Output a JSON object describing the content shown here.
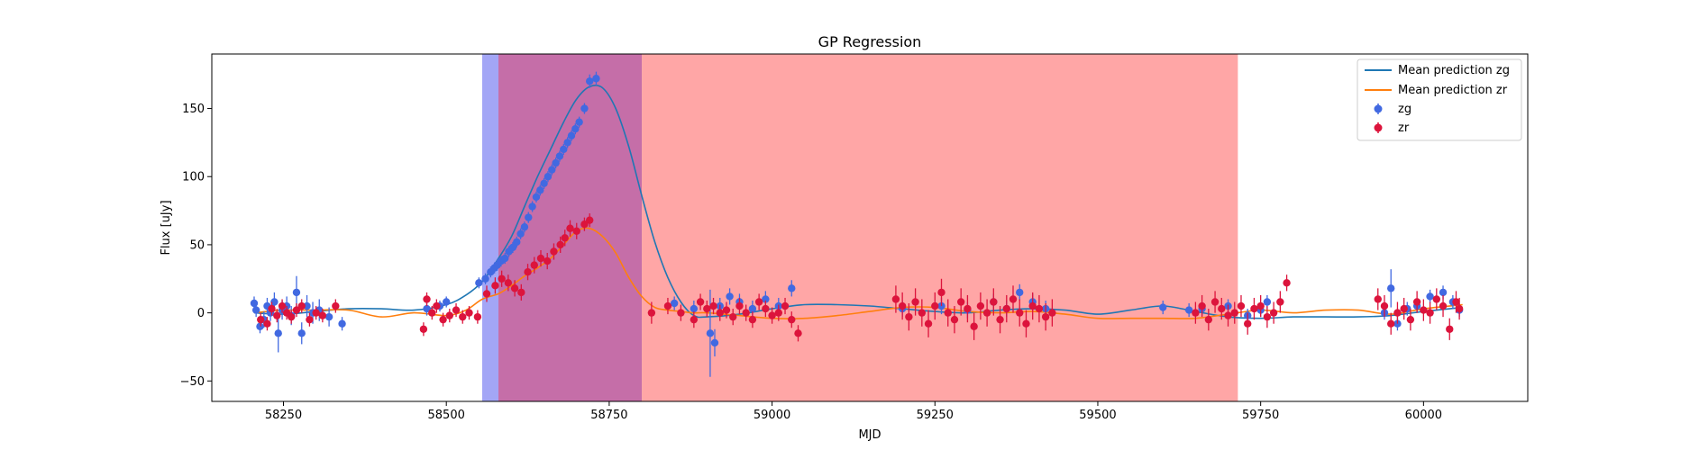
{
  "chart_data": {
    "type": "scatter",
    "title": "GP Regression",
    "xlabel": "MJD",
    "ylabel": "Flux [uJy]",
    "xlim": [
      58140,
      60160
    ],
    "ylim": [
      -65,
      190
    ],
    "x_ticks": [
      58250,
      58500,
      58750,
      59000,
      59250,
      59500,
      59750,
      60000
    ],
    "y_ticks": [
      -50,
      0,
      50,
      100,
      150
    ],
    "grid": false,
    "legend_position": "top-right",
    "shaded_regions": [
      {
        "x0": 58555,
        "x1": 58580,
        "color": "#a3a6f6"
      },
      {
        "x0": 58580,
        "x1": 58800,
        "color": "#c56ea8"
      },
      {
        "x0": 58800,
        "x1": 59715,
        "color": "#ffa6a6"
      }
    ],
    "series": [
      {
        "name": "Mean prediction zg",
        "kind": "line",
        "color": "#1f77b4",
        "x": [
          58205,
          58250,
          58300,
          58350,
          58400,
          58450,
          58500,
          58530,
          58555,
          58580,
          58600,
          58620,
          58640,
          58660,
          58680,
          58700,
          58720,
          58740,
          58760,
          58780,
          58800,
          58820,
          58840,
          58860,
          58880,
          58900,
          58950,
          59000,
          59050,
          59100,
          59150,
          59200,
          59250,
          59300,
          59350,
          59400,
          59450,
          59500,
          59550,
          59600,
          59650,
          59700,
          59750,
          59800,
          59850,
          59900,
          59950,
          60000,
          60060
        ],
        "y": [
          0,
          -1,
          1,
          3,
          3,
          2,
          6,
          13,
          23,
          40,
          56,
          78,
          100,
          120,
          140,
          157,
          166,
          165,
          150,
          122,
          86,
          52,
          26,
          8,
          -2,
          -3,
          -1,
          3,
          6,
          6,
          5,
          3,
          1,
          0,
          2,
          3,
          2,
          -1,
          2,
          5,
          1,
          -3,
          -4,
          -3,
          -3,
          -3,
          -2,
          1,
          4
        ]
      },
      {
        "name": "Mean prediction zr",
        "kind": "line",
        "color": "#ff7f0e",
        "x": [
          58205,
          58250,
          58300,
          58350,
          58400,
          58450,
          58500,
          58530,
          58555,
          58580,
          58600,
          58620,
          58640,
          58660,
          58680,
          58700,
          58720,
          58740,
          58760,
          58780,
          58800,
          58820,
          58840,
          58860,
          58880,
          58900,
          58950,
          59000,
          59050,
          59100,
          59150,
          59200,
          59250,
          59300,
          59350,
          59400,
          59450,
          59500,
          59550,
          59600,
          59650,
          59700,
          59750,
          59800,
          59850,
          59900,
          59950,
          60000,
          60060
        ],
        "y": [
          0,
          2,
          2,
          2,
          -3,
          0,
          -2,
          2,
          10,
          14,
          20,
          27,
          33,
          40,
          50,
          60,
          62,
          56,
          44,
          26,
          12,
          4,
          2,
          1,
          0,
          0,
          -2,
          -4,
          -4,
          -2,
          1,
          4,
          4,
          1,
          0,
          1,
          -1,
          -4,
          -4,
          -4,
          -4,
          -1,
          2,
          0,
          2,
          2,
          -1,
          3,
          6
        ]
      },
      {
        "name": "zg",
        "kind": "errorbar",
        "color": "#4169e1",
        "x": [
          58205,
          58208,
          58214,
          58220,
          58225,
          58230,
          58236,
          58242,
          58248,
          58255,
          58262,
          58270,
          58278,
          58286,
          58295,
          58305,
          58320,
          58340,
          58470,
          58490,
          58500,
          58550,
          58560,
          58568,
          58574,
          58578,
          58584,
          58590,
          58596,
          58602,
          58608,
          58614,
          58620,
          58626,
          58632,
          58638,
          58644,
          58650,
          58656,
          58662,
          58668,
          58674,
          58680,
          58686,
          58692,
          58698,
          58704,
          58712,
          58720,
          58730,
          58850,
          58880,
          58905,
          58912,
          58920,
          58935,
          58950,
          58970,
          58990,
          59010,
          59030,
          59200,
          59260,
          59300,
          59340,
          59360,
          59380,
          59400,
          59420,
          59600,
          59640,
          59660,
          59700,
          59730,
          59750,
          59760,
          59940,
          59950,
          59960,
          59975,
          59990,
          60010,
          60030,
          60045,
          60055
        ],
        "y": [
          7,
          2,
          -10,
          -5,
          5,
          0,
          8,
          -15,
          2,
          5,
          -2,
          15,
          -15,
          5,
          0,
          2,
          -3,
          -8,
          3,
          5,
          8,
          22,
          25,
          30,
          33,
          35,
          38,
          40,
          45,
          48,
          52,
          58,
          63,
          70,
          78,
          85,
          90,
          95,
          100,
          105,
          110,
          115,
          120,
          125,
          130,
          135,
          140,
          150,
          170,
          172,
          7,
          3,
          -15,
          -22,
          5,
          12,
          8,
          3,
          10,
          5,
          18,
          3,
          5,
          2,
          8,
          3,
          15,
          8,
          3,
          4,
          2,
          3,
          5,
          -2,
          2,
          8,
          0,
          18,
          -8,
          3,
          5,
          12,
          15,
          8,
          2
        ],
        "yerr": [
          5,
          5,
          5,
          6,
          6,
          6,
          7,
          14,
          7,
          7,
          7,
          12,
          8,
          8,
          8,
          8,
          7,
          5,
          5,
          4,
          4,
          4,
          4,
          4,
          4,
          4,
          4,
          4,
          4,
          4,
          4,
          4,
          4,
          4,
          4,
          4,
          4,
          4,
          4,
          4,
          4,
          4,
          4,
          4,
          4,
          4,
          4,
          4,
          5,
          5,
          5,
          6,
          32,
          10,
          6,
          6,
          6,
          6,
          6,
          6,
          6,
          6,
          6,
          6,
          6,
          6,
          6,
          6,
          6,
          5,
          5,
          5,
          5,
          5,
          5,
          5,
          5,
          14,
          5,
          5,
          5,
          5,
          5,
          5,
          5
        ]
      },
      {
        "name": "zr",
        "kind": "errorbar",
        "color": "#dc143c",
        "x": [
          58215,
          58225,
          58232,
          58240,
          58248,
          58255,
          58262,
          58270,
          58278,
          58290,
          58300,
          58310,
          58330,
          58465,
          58470,
          58478,
          58485,
          58495,
          58505,
          58515,
          58525,
          58535,
          58548,
          58562,
          58575,
          58585,
          58595,
          58605,
          58615,
          58625,
          58635,
          58645,
          58655,
          58665,
          58675,
          58682,
          58690,
          58700,
          58712,
          58720,
          58815,
          58840,
          58860,
          58880,
          58890,
          58900,
          58910,
          58920,
          58930,
          58940,
          58950,
          58960,
          58970,
          58980,
          58990,
          59000,
          59010,
          59020,
          59030,
          59040,
          59190,
          59200,
          59210,
          59220,
          59230,
          59240,
          59250,
          59260,
          59270,
          59280,
          59290,
          59300,
          59310,
          59320,
          59330,
          59340,
          59350,
          59360,
          59370,
          59380,
          59390,
          59400,
          59410,
          59420,
          59430,
          59650,
          59660,
          59670,
          59680,
          59690,
          59700,
          59710,
          59720,
          59730,
          59740,
          59750,
          59760,
          59770,
          59780,
          59790,
          59930,
          59940,
          59950,
          59960,
          59970,
          59980,
          59990,
          60000,
          60010,
          60020,
          60030,
          60040,
          60050,
          60055
        ],
        "y": [
          -5,
          -8,
          3,
          -2,
          5,
          0,
          -3,
          2,
          5,
          -5,
          0,
          -2,
          5,
          -12,
          10,
          0,
          5,
          -5,
          -2,
          2,
          -3,
          0,
          -3,
          14,
          20,
          25,
          22,
          18,
          15,
          30,
          35,
          40,
          38,
          45,
          50,
          55,
          62,
          60,
          65,
          68,
          0,
          5,
          0,
          -5,
          8,
          3,
          5,
          0,
          2,
          -3,
          5,
          0,
          -5,
          8,
          3,
          -2,
          0,
          5,
          -5,
          -15,
          10,
          5,
          -3,
          8,
          0,
          -8,
          5,
          15,
          0,
          -5,
          8,
          3,
          -10,
          5,
          0,
          8,
          -5,
          3,
          10,
          0,
          -8,
          5,
          3,
          -3,
          0,
          0,
          5,
          -5,
          8,
          3,
          -2,
          0,
          5,
          -8,
          3,
          5,
          -3,
          0,
          8,
          22,
          10,
          5,
          -8,
          0,
          3,
          -5,
          8,
          2,
          0,
          10,
          5,
          -12,
          8,
          3
        ],
        "yerr": [
          5,
          5,
          5,
          5,
          5,
          5,
          5,
          5,
          5,
          5,
          5,
          5,
          5,
          5,
          5,
          5,
          5,
          5,
          5,
          5,
          5,
          5,
          5,
          6,
          6,
          6,
          6,
          6,
          6,
          6,
          6,
          6,
          6,
          6,
          6,
          6,
          6,
          6,
          5,
          5,
          8,
          6,
          6,
          6,
          6,
          6,
          6,
          6,
          6,
          6,
          6,
          6,
          6,
          6,
          6,
          6,
          6,
          6,
          6,
          6,
          10,
          10,
          10,
          10,
          10,
          10,
          10,
          10,
          10,
          10,
          10,
          10,
          10,
          10,
          10,
          10,
          10,
          10,
          10,
          10,
          10,
          10,
          10,
          10,
          10,
          8,
          8,
          8,
          8,
          8,
          8,
          8,
          8,
          8,
          8,
          8,
          8,
          8,
          8,
          6,
          8,
          8,
          8,
          8,
          8,
          8,
          8,
          8,
          8,
          8,
          8,
          8,
          8,
          8
        ]
      }
    ]
  }
}
